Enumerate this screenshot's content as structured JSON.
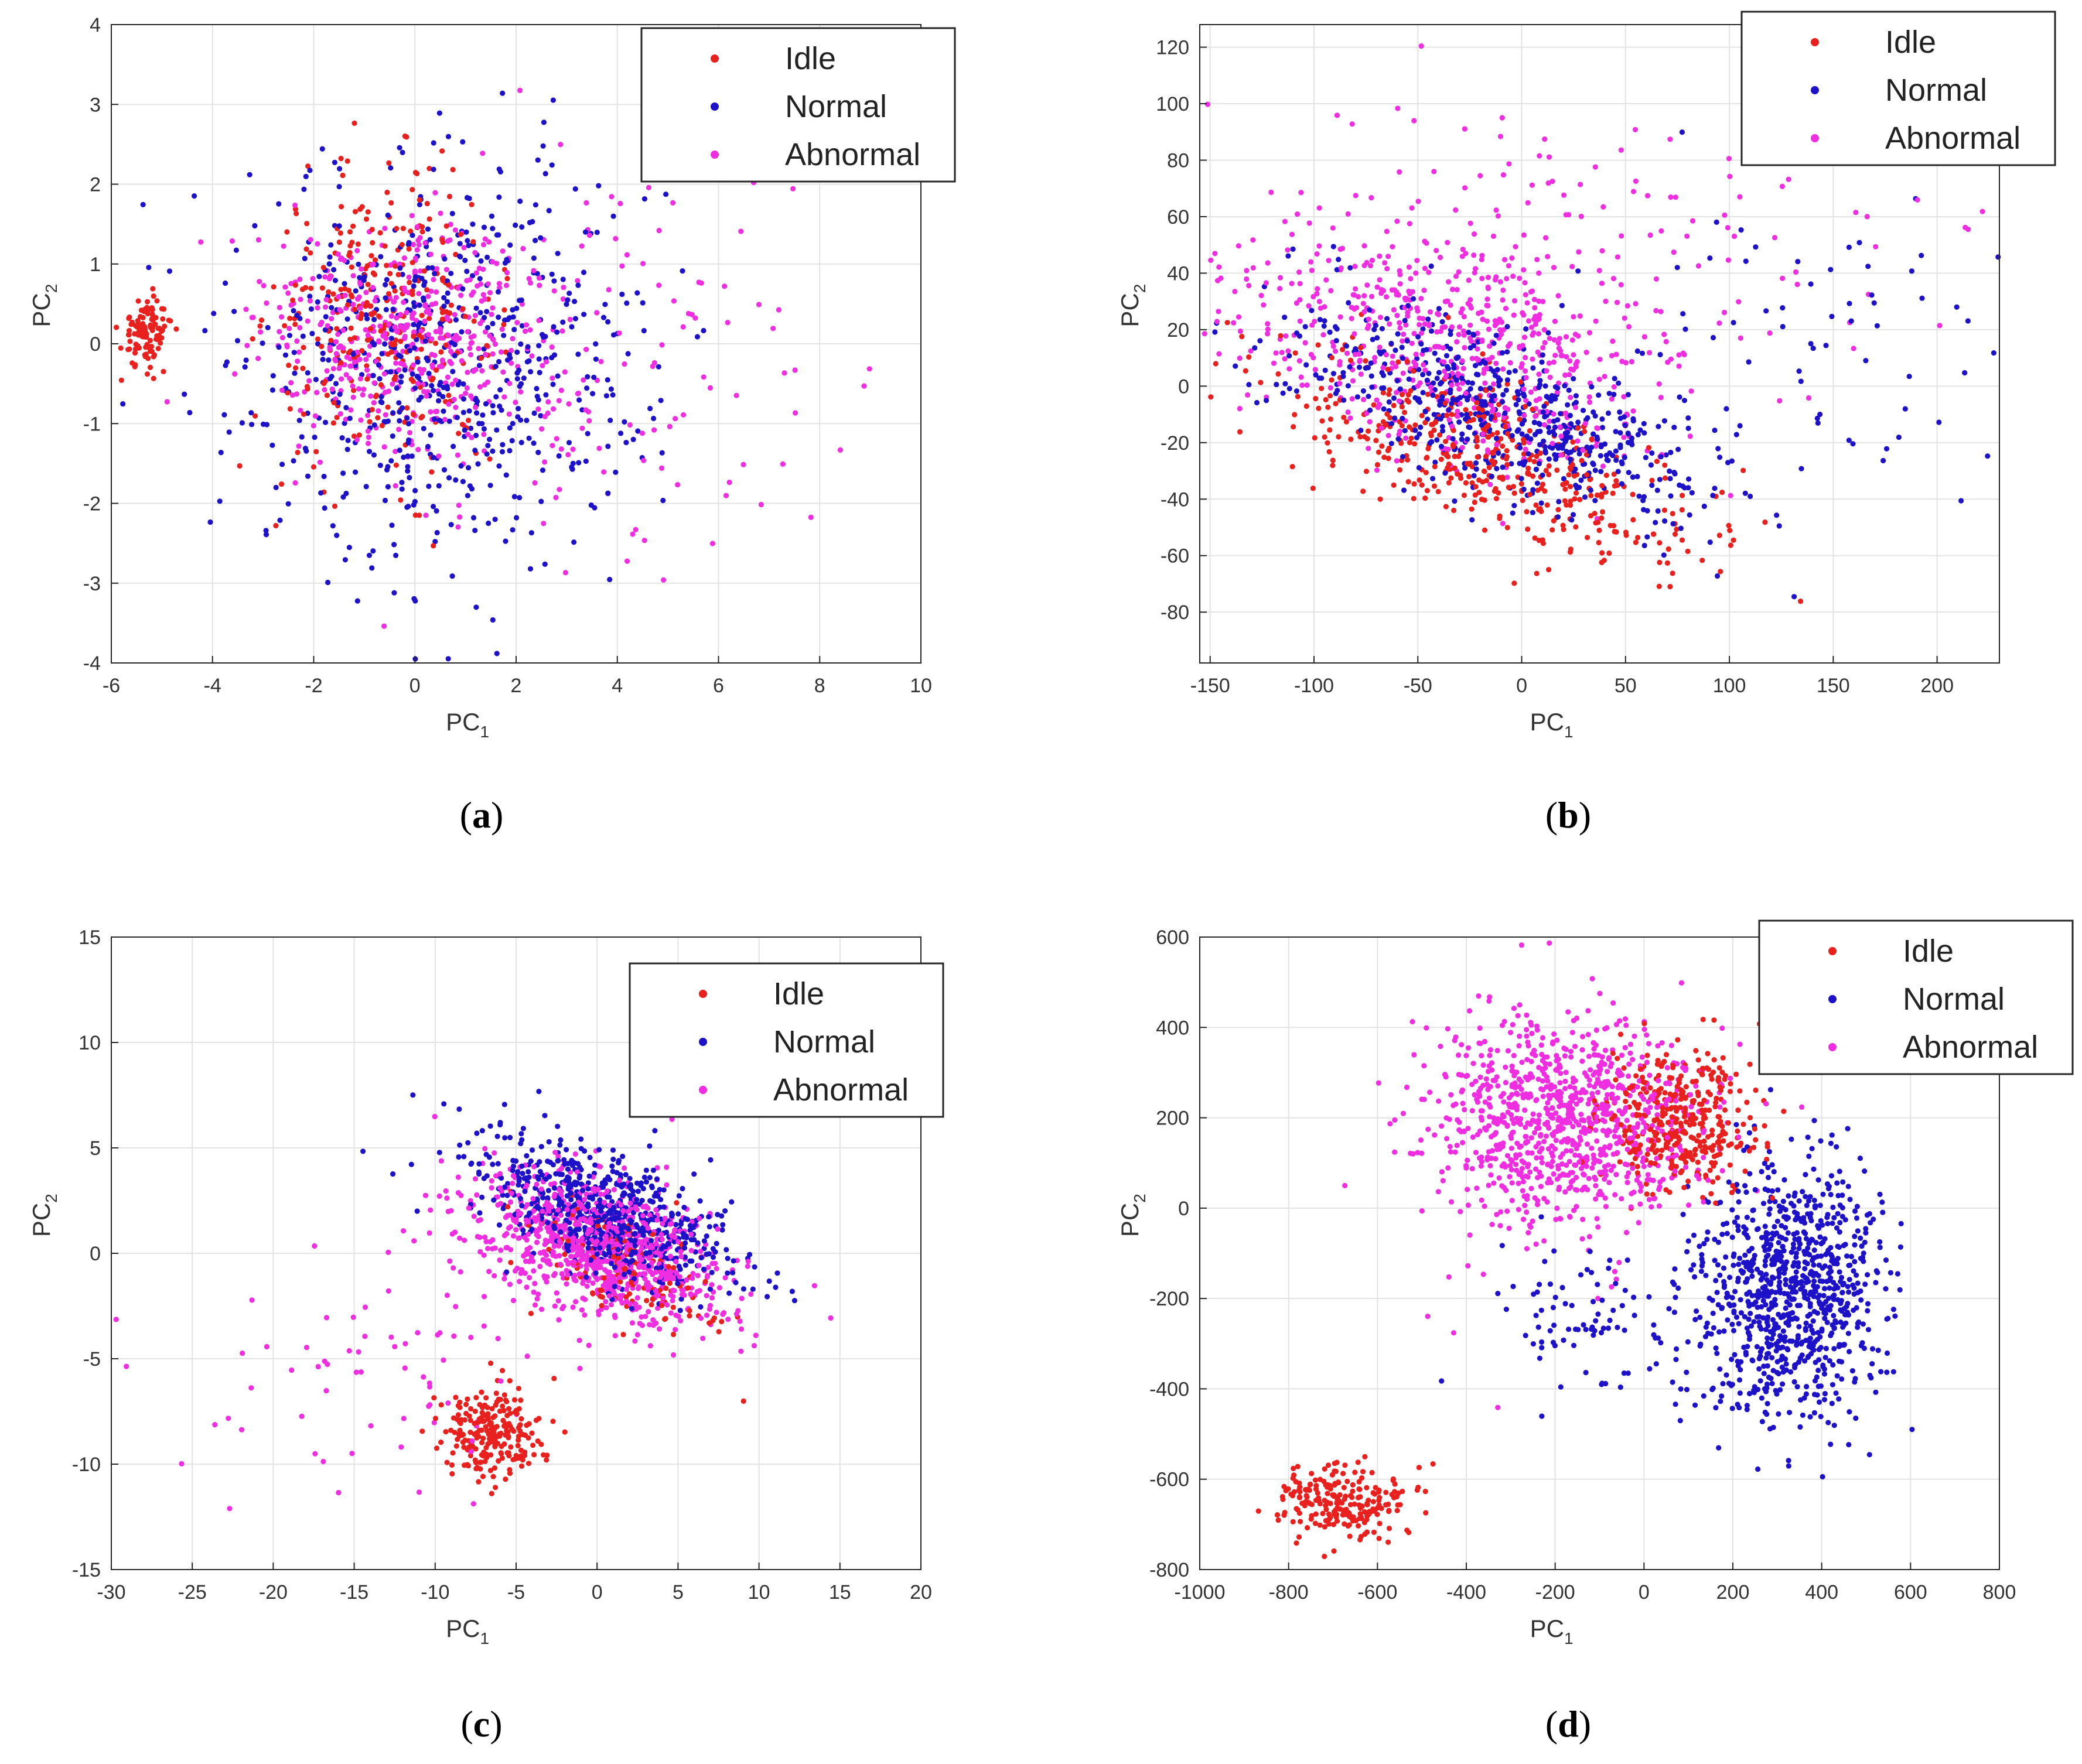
{
  "figure": {
    "panels": [
      {
        "caption_letter": "a"
      },
      {
        "caption_letter": "b"
      },
      {
        "caption_letter": "c"
      },
      {
        "caption_letter": "d"
      }
    ]
  },
  "chart_data": [
    {
      "type": "scatter",
      "panel": "a",
      "xlabel": "PC1",
      "ylabel": "PC2",
      "xlim": [
        -6,
        10
      ],
      "ylim": [
        -4,
        4
      ],
      "xticks": [
        -6,
        -4,
        -2,
        0,
        2,
        4,
        6,
        8,
        10
      ],
      "yticks": [
        -4,
        -3,
        -2,
        -1,
        0,
        1,
        2,
        3,
        4
      ],
      "grid": true,
      "legend": [
        "Idle",
        "Normal",
        "Abnormal"
      ],
      "legend_position": "top-right",
      "colors": {
        "Idle": "#e8201e",
        "Normal": "#1d12c8",
        "Abnormal": "#ee2ee0"
      },
      "series": [
        {
          "name": "Idle",
          "clusters": [
            {
              "cx": -5.3,
              "cy": 0.15,
              "sx": 0.25,
              "sy": 0.22,
              "n": 110
            },
            {
              "cx": -0.6,
              "cy": 0.3,
              "sx": 1.1,
              "sy": 0.9,
              "n": 300
            }
          ]
        },
        {
          "name": "Normal",
          "clusters": [
            {
              "cx": 0.6,
              "cy": -0.2,
              "sx": 2.0,
              "sy": 1.25,
              "n": 650
            }
          ]
        },
        {
          "name": "Abnormal",
          "clusters": [
            {
              "cx": -0.2,
              "cy": 0.1,
              "sx": 1.5,
              "sy": 0.7,
              "n": 450
            },
            {
              "cx": 3.5,
              "cy": -0.3,
              "sx": 2.2,
              "sy": 1.2,
              "n": 150
            }
          ]
        }
      ]
    },
    {
      "type": "scatter",
      "panel": "b",
      "xlabel": "PC1",
      "ylabel": "PC2",
      "xlim": [
        -155,
        230
      ],
      "ylim": [
        -98,
        128
      ],
      "xticks": [
        -150,
        -100,
        -50,
        0,
        50,
        100,
        150,
        200
      ],
      "yticks": [
        -80,
        -60,
        -40,
        -20,
        0,
        20,
        40,
        60,
        80,
        100,
        120
      ],
      "grid": true,
      "legend": [
        "Idle",
        "Normal",
        "Abnormal"
      ],
      "legend_position": "top-right",
      "colors": {
        "Idle": "#e8201e",
        "Normal": "#1d12c8",
        "Abnormal": "#ee2ee0"
      },
      "series": [
        {
          "name": "Idle",
          "clusters": [
            {
              "cx": -15,
              "cy": -25,
              "sx": 55,
              "sy": 12,
              "angle": -28,
              "n": 450
            }
          ]
        },
        {
          "name": "Normal",
          "clusters": [
            {
              "cx": -10,
              "cy": -10,
              "sx": 55,
              "sy": 13,
              "angle": -28,
              "n": 600
            },
            {
              "cx": 140,
              "cy": 15,
              "sx": 60,
              "sy": 35,
              "n": 80
            }
          ]
        },
        {
          "name": "Abnormal",
          "clusters": [
            {
              "cx": -35,
              "cy": 15,
              "sx": 55,
              "sy": 18,
              "angle": -24,
              "n": 600
            },
            {
              "cx": 20,
              "cy": 55,
              "sx": 90,
              "sy": 30,
              "n": 120
            }
          ]
        }
      ]
    },
    {
      "type": "scatter",
      "panel": "c",
      "xlabel": "PC1",
      "ylabel": "PC2",
      "xlim": [
        -30,
        20
      ],
      "ylim": [
        -15,
        15
      ],
      "xticks": [
        -30,
        -25,
        -20,
        -15,
        -10,
        -5,
        0,
        5,
        10,
        15,
        20
      ],
      "yticks": [
        -15,
        -10,
        -5,
        0,
        5,
        10,
        15
      ],
      "grid": true,
      "legend": [
        "Idle",
        "Normal",
        "Abnormal"
      ],
      "legend_position": "top-right",
      "colors": {
        "Idle": "#e8201e",
        "Normal": "#1d12c8",
        "Abnormal": "#ee2ee0"
      },
      "series": [
        {
          "name": "Idle",
          "clusters": [
            {
              "cx": -6.5,
              "cy": -8.5,
              "sx": 1.6,
              "sy": 1.1,
              "n": 230
            },
            {
              "cx": 2,
              "cy": -1,
              "sx": 3.5,
              "sy": 1.2,
              "angle": -32,
              "n": 130
            }
          ]
        },
        {
          "name": "Normal",
          "clusters": [
            {
              "cx": 0.5,
              "cy": 1.8,
              "sx": 4.5,
              "sy": 1.3,
              "angle": -34,
              "n": 700
            }
          ]
        },
        {
          "name": "Abnormal",
          "clusters": [
            {
              "cx": 0,
              "cy": 0.3,
              "sx": 4.3,
              "sy": 1.5,
              "angle": -30,
              "n": 900
            },
            {
              "cx": -14,
              "cy": -6,
              "sx": 5.5,
              "sy": 2.8,
              "n": 70
            }
          ]
        }
      ]
    },
    {
      "type": "scatter",
      "panel": "d",
      "xlabel": "PC1",
      "ylabel": "PC2",
      "xlim": [
        -1000,
        800
      ],
      "ylim": [
        -800,
        600
      ],
      "xticks": [
        -1000,
        -800,
        -600,
        -400,
        -200,
        0,
        200,
        400,
        600,
        800
      ],
      "yticks": [
        -800,
        -600,
        -400,
        -200,
        0,
        200,
        400,
        600
      ],
      "grid": true,
      "legend": [
        "Idle",
        "Normal",
        "Abnormal"
      ],
      "legend_position": "top-right",
      "colors": {
        "Idle": "#e8201e",
        "Normal": "#1d12c8",
        "Abnormal": "#ee2ee0"
      },
      "series": [
        {
          "name": "Idle",
          "clusters": [
            {
              "cx": -680,
              "cy": -650,
              "sx": 70,
              "sy": 45,
              "n": 230
            },
            {
              "cx": 80,
              "cy": 200,
              "sx": 85,
              "sy": 75,
              "n": 380
            }
          ]
        },
        {
          "name": "Normal",
          "clusters": [
            {
              "cx": 330,
              "cy": -180,
              "sx": 100,
              "sy": 145,
              "n": 900
            },
            {
              "cx": -120,
              "cy": -250,
              "sx": 130,
              "sy": 90,
              "n": 90
            }
          ]
        },
        {
          "name": "Abnormal",
          "clusters": [
            {
              "cx": -170,
              "cy": 190,
              "sx": 150,
              "sy": 110,
              "n": 900
            },
            {
              "cx": -350,
              "cy": 250,
              "sx": 100,
              "sy": 190,
              "n": 80
            }
          ]
        }
      ]
    }
  ]
}
